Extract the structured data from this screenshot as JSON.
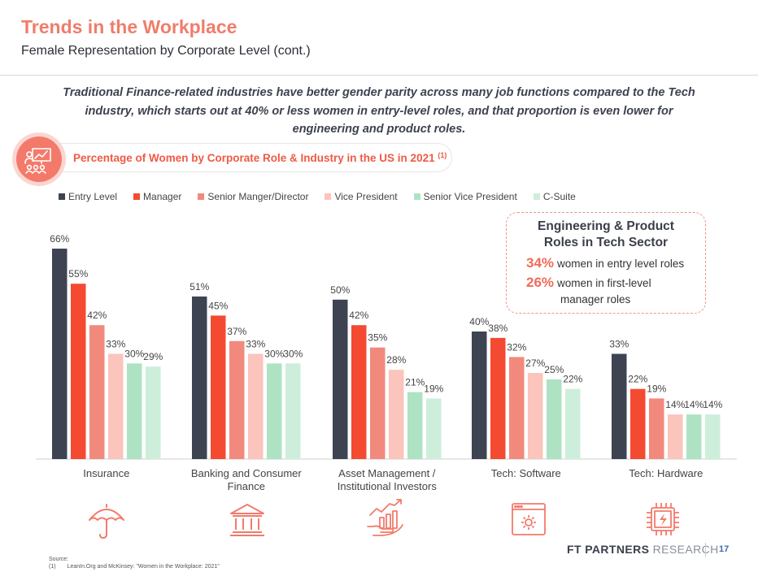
{
  "header": {
    "title": "Trends in the Workplace",
    "subtitle": "Female Representation by Corporate Level (cont.)"
  },
  "lead": {
    "line1": "Traditional Finance-related industries have better gender parity across many job functions compared to the Tech",
    "line2": "industry, which starts out at 40% or less women in entry-level roles, and that proportion is even lower for",
    "line3": "engineering and product roles."
  },
  "section": {
    "heading": "Percentage of Women by Corporate Role & Industry in the US in 2021",
    "footnote_ref": "(1)",
    "icon": "presentation-icon"
  },
  "callout": {
    "title_line1": "Engineering & Product",
    "title_line2": "Roles in Tech Sector",
    "stat1_value": "34%",
    "stat1_text": "women in entry level roles",
    "stat2_value": "26%",
    "stat2_text_line1": "women in first-level",
    "stat2_text_line2": "manager roles"
  },
  "chart_data": {
    "type": "bar",
    "categories": [
      [
        "Insurance"
      ],
      [
        "Banking and Consumer",
        "Finance"
      ],
      [
        "Asset Management /",
        "Institutional Investors"
      ],
      [
        "Tech: Software"
      ],
      [
        "Tech: Hardware"
      ]
    ],
    "series": [
      {
        "name": "Entry Level",
        "color": "#3e4352",
        "values": [
          66,
          51,
          50,
          40,
          33
        ]
      },
      {
        "name": "Manager",
        "color": "#f44a32",
        "values": [
          55,
          45,
          42,
          38,
          22
        ]
      },
      {
        "name": "Senior Manger/Director",
        "color": "#f2897d",
        "values": [
          42,
          37,
          35,
          32,
          19
        ]
      },
      {
        "name": "Vice President",
        "color": "#fbc4bc",
        "values": [
          33,
          33,
          28,
          27,
          14
        ]
      },
      {
        "name": "Senior Vice President",
        "color": "#ade3c3",
        "values": [
          30,
          30,
          21,
          25,
          14
        ]
      },
      {
        "name": "C-Suite",
        "color": "#cdeedb",
        "values": [
          29,
          30,
          19,
          22,
          14
        ]
      }
    ],
    "value_suffix": "%",
    "ylim": [
      0,
      66
    ],
    "legend_position": "top-left",
    "grid": false,
    "category_icons": [
      "umbrella-icon",
      "bank-icon",
      "growth-chart-icon",
      "software-gear-icon",
      "microchip-icon"
    ]
  },
  "footer": {
    "source_label": "Source:",
    "source_ref": "(1)",
    "source_text": "LeanIn.Org and McKinsey: \"Women in the Workplace: 2021\"",
    "brand_bold": "FT PARTNERS",
    "brand_light": "RESEARCH",
    "page_number": "17"
  },
  "colors": {
    "accent": "#f07d6c",
    "accent_strong": "#ef5a44",
    "brand_blue": "#3d6ca8"
  }
}
